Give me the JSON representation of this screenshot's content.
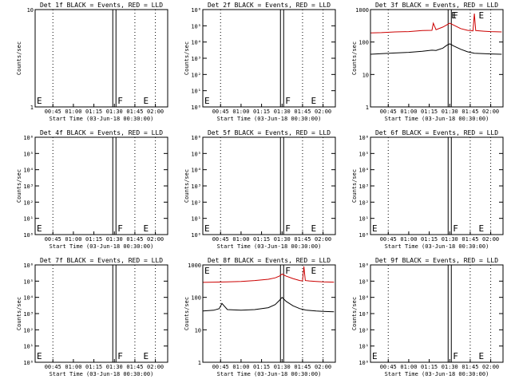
{
  "chart_data": [
    {
      "type": "line",
      "title": "Det 1f BLACK = Events, RED = LLD",
      "xlabel": "Start Time (03-Jun-18 00:30:00)",
      "ylabel": "Counts/sec",
      "xlim": [
        "00:32",
        "02:09"
      ],
      "ylim": [
        1,
        10
      ],
      "yscale": "log",
      "yticks": [
        "10",
        "1"
      ],
      "xticks": [
        "00:45",
        "01:00",
        "01:15",
        "01:30",
        "01:45",
        "02:00"
      ],
      "markers": [
        {
          "label": "E",
          "x": "00:32"
        },
        {
          "label": "F",
          "x": "01:30"
        },
        {
          "label": "E",
          "x": "01:50"
        }
      ],
      "series": []
    },
    {
      "type": "line",
      "title": "Det 2f BLACK = Events, RED = LLD",
      "xlabel": "Start Time (03-Jun-18 00:30:00)",
      "ylabel": "Counts/sec",
      "xlim": [
        "00:32",
        "02:09"
      ],
      "ylim": [
        1,
        1000000
      ],
      "yscale": "log",
      "yticks": [
        "10⁶",
        "10⁵",
        "10⁴",
        "10³",
        "10²",
        "10¹",
        "10⁰"
      ],
      "xticks": [
        "00:45",
        "01:00",
        "01:15",
        "01:30",
        "01:45",
        "02:00"
      ],
      "markers": [
        {
          "label": "E",
          "x": "00:32"
        },
        {
          "label": "F",
          "x": "01:30"
        },
        {
          "label": "E",
          "x": "01:50"
        }
      ],
      "series": []
    },
    {
      "type": "line",
      "title": "Det 3f BLACK = Events, RED = LLD",
      "xlabel": "Start Time (03-Jun-18 00:30:00)",
      "ylabel": "Counts/sec",
      "xlim": [
        "00:32",
        "02:09"
      ],
      "ylim": [
        1,
        1000
      ],
      "yscale": "log",
      "yticks": [
        "1000",
        "100",
        "10",
        "1"
      ],
      "xticks": [
        "00:45",
        "01:00",
        "01:15",
        "01:30",
        "01:45",
        "02:00"
      ],
      "markers": [
        {
          "label": "E",
          "x": "01:30"
        },
        {
          "label": "F",
          "x": "01:30"
        },
        {
          "label": "E",
          "x": "01:50"
        }
      ],
      "series": [
        {
          "color": "#cc0000",
          "x": [
            "00:32",
            "00:40",
            "00:50",
            "01:00",
            "01:10",
            "01:17",
            "01:18",
            "01:20",
            "01:25",
            "01:28",
            "01:30",
            "01:33",
            "01:38",
            "01:43",
            "01:47",
            "01:48",
            "01:49",
            "01:55",
            "02:00",
            "02:08"
          ],
          "values": [
            190,
            195,
            205,
            210,
            225,
            230,
            380,
            240,
            290,
            340,
            380,
            330,
            260,
            230,
            220,
            750,
            225,
            215,
            210,
            205
          ]
        },
        {
          "color": "#000000",
          "x": [
            "00:32",
            "00:40",
            "00:50",
            "01:00",
            "01:10",
            "01:17",
            "01:20",
            "01:25",
            "01:28",
            "01:30",
            "01:33",
            "01:38",
            "01:43",
            "01:48",
            "01:55",
            "02:00",
            "02:08"
          ],
          "values": [
            42,
            44,
            46,
            48,
            52,
            56,
            55,
            65,
            80,
            88,
            75,
            60,
            50,
            45,
            44,
            43,
            42
          ]
        }
      ]
    },
    {
      "type": "line",
      "title": "Det 4f BLACK = Events, RED = LLD",
      "xlabel": "Start Time (03-Jun-18 00:30:00)",
      "ylabel": "Counts/sec",
      "xlim": [
        "00:32",
        "02:09"
      ],
      "ylim": [
        1,
        1000000
      ],
      "yscale": "log",
      "yticks": [
        "10⁶",
        "10⁵",
        "10⁴",
        "10³",
        "10²",
        "10¹",
        "10⁰"
      ],
      "xticks": [
        "00:45",
        "01:00",
        "01:15",
        "01:30",
        "01:45",
        "02:00"
      ],
      "markers": [
        {
          "label": "E",
          "x": "00:32"
        },
        {
          "label": "F",
          "x": "01:30"
        },
        {
          "label": "E",
          "x": "01:50"
        }
      ],
      "series": []
    },
    {
      "type": "line",
      "title": "Det 5f BLACK = Events, RED = LLD",
      "xlabel": "Start Time (03-Jun-18 00:30:00)",
      "ylabel": "Counts/sec",
      "xlim": [
        "00:32",
        "02:09"
      ],
      "ylim": [
        1,
        1000000
      ],
      "yscale": "log",
      "yticks": [
        "10⁶",
        "10⁵",
        "10⁴",
        "10³",
        "10²",
        "10¹",
        "10⁰"
      ],
      "xticks": [
        "00:45",
        "01:00",
        "01:15",
        "01:30",
        "01:45",
        "02:00"
      ],
      "markers": [
        {
          "label": "E",
          "x": "00:32"
        },
        {
          "label": "F",
          "x": "01:30"
        },
        {
          "label": "E",
          "x": "01:50"
        }
      ],
      "series": []
    },
    {
      "type": "line",
      "title": "Det 6f BLACK = Events, RED = LLD",
      "xlabel": "Start Time (03-Jun-18 00:30:00)",
      "ylabel": "Counts/sec",
      "xlim": [
        "00:32",
        "02:09"
      ],
      "ylim": [
        1,
        1000000
      ],
      "yscale": "log",
      "yticks": [
        "10⁶",
        "10⁵",
        "10⁴",
        "10³",
        "10²",
        "10¹",
        "10⁰"
      ],
      "xticks": [
        "00:45",
        "01:00",
        "01:15",
        "01:30",
        "01:45",
        "02:00"
      ],
      "markers": [
        {
          "label": "E",
          "x": "00:32"
        },
        {
          "label": "F",
          "x": "01:30"
        },
        {
          "label": "E",
          "x": "01:50"
        }
      ],
      "series": []
    },
    {
      "type": "line",
      "title": "Det 7f BLACK = Events, RED = LLD",
      "xlabel": "Start Time (03-Jun-18 00:30:00)",
      "ylabel": "Counts/sec",
      "xlim": [
        "00:32",
        "02:09"
      ],
      "ylim": [
        1,
        1000000
      ],
      "yscale": "log",
      "yticks": [
        "10⁶",
        "10⁵",
        "10⁴",
        "10³",
        "10²",
        "10¹",
        "10⁰"
      ],
      "xticks": [
        "00:45",
        "01:00",
        "01:15",
        "01:30",
        "01:45",
        "02:00"
      ],
      "markers": [
        {
          "label": "E",
          "x": "00:32"
        },
        {
          "label": "F",
          "x": "01:30"
        },
        {
          "label": "E",
          "x": "01:50"
        }
      ],
      "series": []
    },
    {
      "type": "line",
      "title": "Det 8f BLACK = Events, RED = LLD",
      "xlabel": "Start Time (03-Jun-18 00:30:00)",
      "ylabel": "Counts/sec",
      "xlim": [
        "00:32",
        "02:09"
      ],
      "ylim": [
        1,
        1000
      ],
      "yscale": "log",
      "yticks": [
        "1000",
        "100",
        "10",
        "1"
      ],
      "xticks": [
        "00:45",
        "01:00",
        "01:15",
        "01:30",
        "01:45",
        "02:00"
      ],
      "markers": [
        {
          "label": "E",
          "x": "00:32"
        },
        {
          "label": "F",
          "x": "01:30"
        },
        {
          "label": "E",
          "x": "01:50"
        }
      ],
      "series": [
        {
          "color": "#cc0000",
          "x": [
            "00:32",
            "00:40",
            "00:50",
            "01:00",
            "01:10",
            "01:20",
            "01:25",
            "01:28",
            "01:30",
            "01:33",
            "01:38",
            "01:43",
            "01:45",
            "01:46",
            "01:47",
            "01:50",
            "01:55",
            "02:00",
            "02:08"
          ],
          "values": [
            290,
            295,
            300,
            310,
            330,
            360,
            400,
            450,
            520,
            450,
            380,
            330,
            320,
            900,
            330,
            320,
            310,
            300,
            295
          ]
        },
        {
          "color": "#000000",
          "x": [
            "00:32",
            "00:40",
            "00:44",
            "00:46",
            "00:50",
            "01:00",
            "01:10",
            "01:20",
            "01:25",
            "01:28",
            "01:30",
            "01:33",
            "01:38",
            "01:43",
            "01:48",
            "01:55",
            "02:00",
            "02:08"
          ],
          "values": [
            38,
            40,
            45,
            65,
            42,
            40,
            42,
            48,
            60,
            80,
            100,
            75,
            55,
            45,
            40,
            38,
            37,
            36
          ]
        }
      ]
    },
    {
      "type": "line",
      "title": "Det 9f BLACK = Events, RED = LLD",
      "xlabel": "Start Time (03-Jun-18 00:30:00)",
      "ylabel": "Counts/sec",
      "xlim": [
        "00:32",
        "02:09"
      ],
      "ylim": [
        1,
        1000000
      ],
      "yscale": "log",
      "yticks": [
        "10⁶",
        "10⁵",
        "10⁴",
        "10³",
        "10²",
        "10¹",
        "10⁰"
      ],
      "xticks": [
        "00:45",
        "01:00",
        "01:15",
        "01:30",
        "01:45",
        "02:00"
      ],
      "markers": [
        {
          "label": "E",
          "x": "00:32"
        },
        {
          "label": "F",
          "x": "01:30"
        },
        {
          "label": "E",
          "x": "01:50"
        }
      ],
      "series": []
    }
  ]
}
